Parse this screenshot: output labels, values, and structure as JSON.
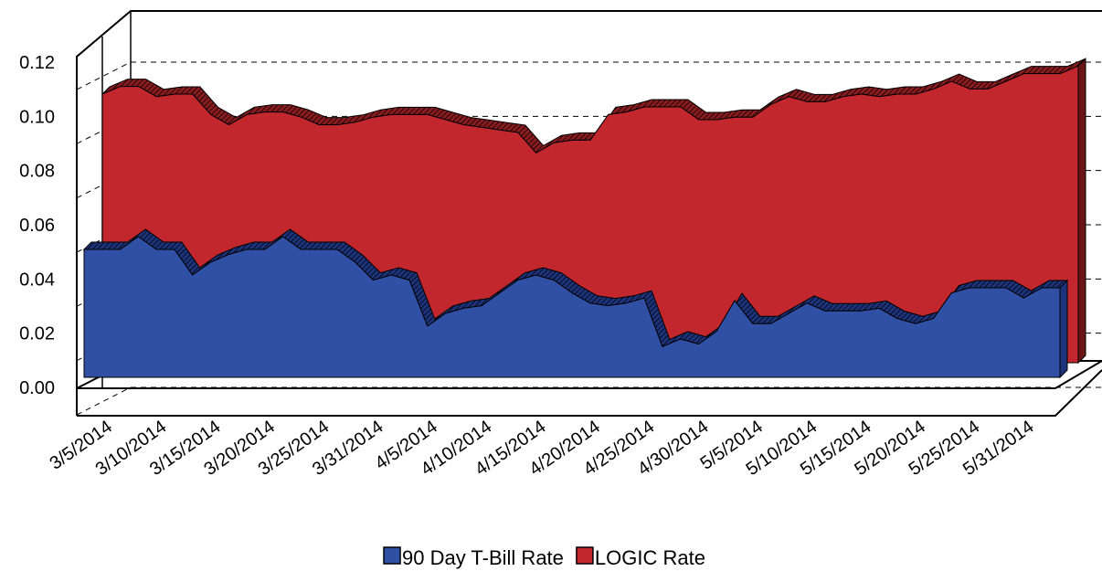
{
  "chart_data": {
    "type": "area3d",
    "categories": [
      "3/5/2014",
      null,
      null,
      "3/10/2014",
      null,
      null,
      "3/15/2014",
      null,
      null,
      "3/20/2014",
      null,
      null,
      "3/25/2014",
      null,
      null,
      "3/31/2014",
      null,
      null,
      "4/5/2014",
      null,
      null,
      "4/10/2014",
      null,
      null,
      "4/15/2014",
      null,
      null,
      "4/20/2014",
      null,
      null,
      "4/25/2014",
      null,
      null,
      "4/30/2014",
      null,
      null,
      "5/5/2014",
      null,
      null,
      "5/10/2014",
      null,
      null,
      "5/15/2014",
      null,
      null,
      "5/20/2014",
      null,
      null,
      "5/25/2014",
      null,
      null,
      "5/31/2014",
      null,
      null,
      null
    ],
    "series": [
      {
        "name": "90 Day T-Bill Rate",
        "color": "#2f50a4",
        "values": [
          0.05,
          0.05,
          0.05,
          0.055,
          0.05,
          0.05,
          0.04,
          0.045,
          0.048,
          0.05,
          0.05,
          0.055,
          0.05,
          0.05,
          0.05,
          0.045,
          0.038,
          0.04,
          0.038,
          0.02,
          0.025,
          0.027,
          0.028,
          0.033,
          0.038,
          0.04,
          0.038,
          0.033,
          0.029,
          0.028,
          0.029,
          0.031,
          0.012,
          0.015,
          0.013,
          0.018,
          0.03,
          0.021,
          0.021,
          0.025,
          0.029,
          0.026,
          0.026,
          0.026,
          0.027,
          0.023,
          0.021,
          0.023,
          0.033,
          0.035,
          0.035,
          0.035,
          0.031,
          0.035,
          0.035
        ]
      },
      {
        "name": "LOGIC Rate",
        "color": "#c1272d",
        "values": [
          0.105,
          0.108,
          0.108,
          0.104,
          0.105,
          0.105,
          0.097,
          0.093,
          0.097,
          0.098,
          0.098,
          0.096,
          0.093,
          0.093,
          0.094,
          0.096,
          0.097,
          0.097,
          0.097,
          0.095,
          0.093,
          0.092,
          0.091,
          0.09,
          0.082,
          0.086,
          0.087,
          0.087,
          0.097,
          0.098,
          0.1,
          0.1,
          0.1,
          0.095,
          0.095,
          0.096,
          0.096,
          0.101,
          0.104,
          0.102,
          0.102,
          0.104,
          0.105,
          0.104,
          0.105,
          0.105,
          0.107,
          0.11,
          0.107,
          0.107,
          0.11,
          0.113,
          0.113,
          0.113,
          0.116
        ]
      }
    ],
    "ylim": [
      0,
      0.12
    ],
    "yticks": [
      {
        "value": 0,
        "label": "0.00"
      },
      {
        "value": 0.02,
        "label": "0.02"
      },
      {
        "value": 0.04,
        "label": "0.04"
      },
      {
        "value": 0.06,
        "label": "0.06"
      },
      {
        "value": 0.08,
        "label": "0.08"
      },
      {
        "value": 0.1,
        "label": "0.10"
      },
      {
        "value": 0.12,
        "label": "0.12"
      }
    ],
    "grid": true,
    "legend": "bottom"
  }
}
